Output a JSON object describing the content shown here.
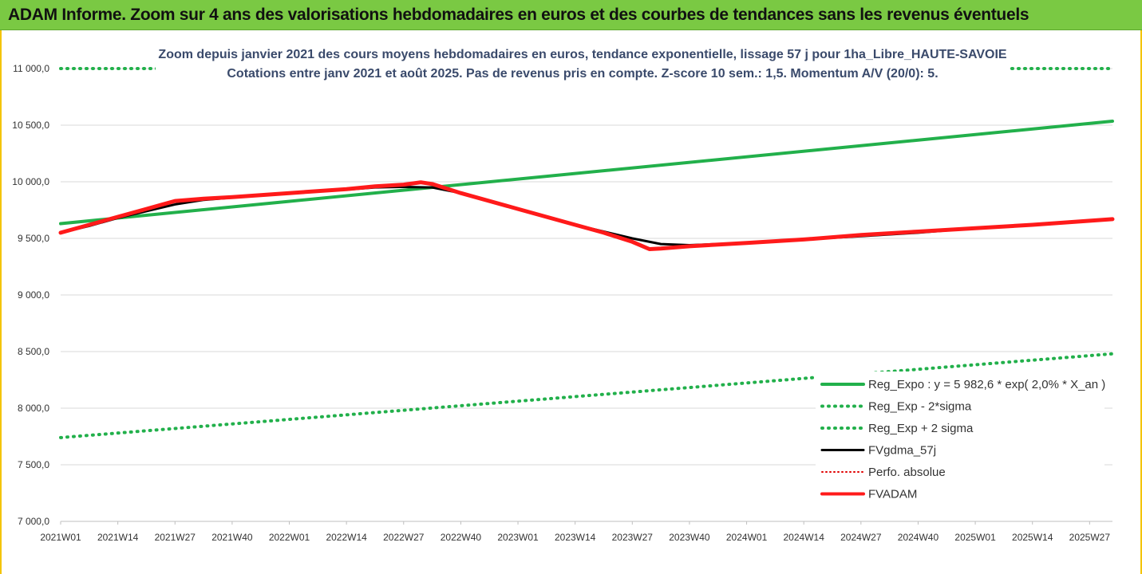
{
  "banner": {
    "title": "ADAM Informe. Zoom sur 4 ans des valorisations hebdomadaires en euros et des courbes de tendances sans les revenus éventuels"
  },
  "colors": {
    "banner_bg": "#7ac943",
    "reg_expo": "#22b04b",
    "sigma": "#22b04b",
    "fvgdma": "#000000",
    "perfo": "#e00000",
    "fvadam": "#ff1a1a",
    "grid": "#d9d9d9"
  },
  "chart_data": {
    "type": "line",
    "title_lines": [
      "Zoom depuis janvier 2021 des cours moyens hebdomadaires en euros, tendance exponentielle, lissage 57 j pour 1ha_Libre_HAUTE-SAVOIE",
      "Cotations entre janv 2021 et août 2025.  Pas de revenus pris en compte. Z-score 10 sem.: 1,5. Momentum A/V (20/0): 5."
    ],
    "x_tick_labels": [
      "2021W01",
      "2021W14",
      "2021W27",
      "2021W40",
      "2022W01",
      "2022W14",
      "2022W27",
      "2022W40",
      "2023W01",
      "2023W14",
      "2023W27",
      "2023W40",
      "2024W01",
      "2024W14",
      "2024W27",
      "2024W40",
      "2025W01",
      "2025W14",
      "2025W27"
    ],
    "x_range": [
      0,
      18.4
    ],
    "y_ticks": [
      7000,
      7500,
      8000,
      8500,
      9000,
      9500,
      10000,
      10500,
      11000
    ],
    "y_tick_labels": [
      "7 000,0",
      "7 500,0",
      "8 000,0",
      "8 500,0",
      "9 000,0",
      "9 500,0",
      "10 000,0",
      "10 500,0",
      "11 000,0"
    ],
    "ylim": [
      7000,
      11000
    ],
    "grid": "horizontal",
    "legend_position": "bottom-right",
    "series": [
      {
        "name": "Reg_Expo : y = 5 982,6 * exp( 2,0% *  X_an )",
        "style": "solid",
        "color": "#22b04b",
        "width": 4,
        "x": [
          0,
          18.4
        ],
        "y": [
          9630,
          10535
        ]
      },
      {
        "name": "Reg_Exp - 2*sigma",
        "style": "dotted",
        "color": "#22b04b",
        "width": 4,
        "x": [
          0,
          18.4
        ],
        "y": [
          7740,
          8480
        ]
      },
      {
        "name": "Reg_Exp + 2 sigma",
        "style": "dotted",
        "color": "#22b04b",
        "width": 4,
        "x": [
          0,
          18.4
        ],
        "y": [
          11000,
          11000
        ]
      },
      {
        "name": "FVgdma_57j",
        "style": "solid",
        "color": "#000000",
        "width": 3,
        "x": [
          0,
          0.5,
          1,
          1.5,
          2,
          2.5,
          3,
          4,
          5,
          5.5,
          6,
          6.5,
          7,
          8,
          9,
          9.5,
          10,
          10.5,
          11,
          12,
          13,
          14,
          15,
          16,
          17,
          18.4
        ],
        "y": [
          9550,
          9610,
          9680,
          9740,
          9800,
          9840,
          9860,
          9900,
          9930,
          9950,
          9955,
          9950,
          9900,
          9760,
          9620,
          9560,
          9500,
          9450,
          9440,
          9460,
          9490,
          9520,
          9550,
          9590,
          9620,
          9670
        ]
      },
      {
        "name": "Perfo. absolue",
        "style": "dotted",
        "color": "#e00000",
        "width": 2,
        "x": [],
        "y": []
      },
      {
        "name": "FVADAM",
        "style": "solid",
        "color": "#ff1a1a",
        "width": 5,
        "x": [
          0,
          0.5,
          1,
          1.5,
          2,
          2.5,
          3,
          4,
          5,
          5.5,
          6,
          6.3,
          6.5,
          7,
          8,
          9,
          9.5,
          10,
          10.3,
          10.5,
          11,
          12,
          13,
          14,
          15,
          16,
          17,
          18.4
        ],
        "y": [
          9550,
          9620,
          9690,
          9760,
          9830,
          9850,
          9865,
          9900,
          9935,
          9960,
          9975,
          9995,
          9980,
          9900,
          9760,
          9620,
          9550,
          9470,
          9405,
          9410,
          9430,
          9460,
          9490,
          9530,
          9560,
          9590,
          9620,
          9670
        ]
      }
    ]
  }
}
